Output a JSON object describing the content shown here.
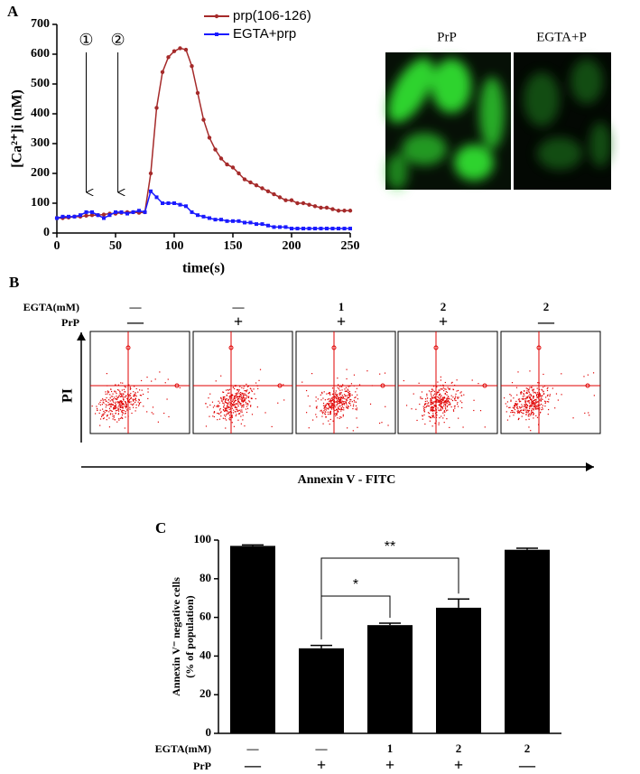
{
  "chart_data": [
    {
      "type": "line",
      "panel_label": "A",
      "xlabel": "time(s)",
      "ylabel": "[Ca²⁺]i (nM)",
      "x": [
        0,
        5,
        10,
        15,
        20,
        25,
        30,
        35,
        40,
        45,
        50,
        55,
        60,
        65,
        70,
        75,
        80,
        85,
        90,
        95,
        100,
        105,
        110,
        115,
        120,
        125,
        130,
        135,
        140,
        145,
        150,
        155,
        160,
        165,
        170,
        175,
        180,
        185,
        190,
        195,
        200,
        205,
        210,
        215,
        220,
        225,
        230,
        235,
        240,
        245,
        250
      ],
      "series": [
        {
          "name": "prp(106-126)",
          "color": "#a52a2a",
          "marker": "circle",
          "values": [
            50,
            50,
            52,
            55,
            55,
            58,
            60,
            60,
            62,
            65,
            65,
            68,
            70,
            70,
            68,
            70,
            200,
            420,
            540,
            590,
            610,
            620,
            615,
            560,
            470,
            380,
            320,
            280,
            250,
            230,
            220,
            200,
            180,
            170,
            160,
            150,
            140,
            130,
            120,
            110,
            110,
            100,
            100,
            95,
            90,
            85,
            85,
            80,
            75,
            75,
            75
          ]
        },
        {
          "name": "EGTA+prp",
          "color": "#1a1aff",
          "marker": "square",
          "values": [
            50,
            55,
            55,
            55,
            60,
            70,
            70,
            60,
            50,
            60,
            70,
            70,
            65,
            70,
            75,
            70,
            140,
            120,
            100,
            100,
            100,
            95,
            90,
            70,
            60,
            55,
            50,
            45,
            45,
            40,
            40,
            40,
            35,
            35,
            30,
            30,
            25,
            20,
            20,
            20,
            15,
            15,
            15,
            15,
            15,
            15,
            15,
            15,
            15,
            15,
            15
          ]
        }
      ],
      "xlim": [
        0,
        250
      ],
      "ylim": [
        0,
        700
      ],
      "xticks": [
        0,
        50,
        100,
        150,
        200,
        250
      ],
      "yticks": [
        0,
        100,
        200,
        300,
        400,
        500,
        600,
        700
      ],
      "legend": "top",
      "annotations": [
        {
          "text": "①",
          "x": 25
        },
        {
          "text": "②",
          "x": 52
        }
      ]
    },
    {
      "type": "bar",
      "panel_label": "C",
      "ylabel": [
        "Annexin V⁻ negative cells",
        "(% of population)"
      ],
      "values": [
        97,
        44,
        56,
        65,
        95
      ],
      "errors": [
        0.5,
        1.5,
        1,
        4.5,
        0.8
      ],
      "color": "#000000",
      "ylim": [
        0,
        100
      ],
      "yticks": [
        0,
        20,
        40,
        60,
        80,
        100
      ],
      "significance": [
        "*",
        "**"
      ]
    }
  ],
  "images": {
    "labels": [
      "PrP",
      "EGTA+P"
    ]
  },
  "flow": {
    "panel_label": "B",
    "y_axis": "PI",
    "x_axis": "Annexin V - FITC"
  },
  "conditions": {
    "egta_label": "EGTA(mM)",
    "egta": [
      "—",
      "—",
      "1",
      "2",
      "2"
    ],
    "prp_label": "PrP",
    "prp": [
      "—",
      "+",
      "+",
      "+",
      "—"
    ]
  }
}
